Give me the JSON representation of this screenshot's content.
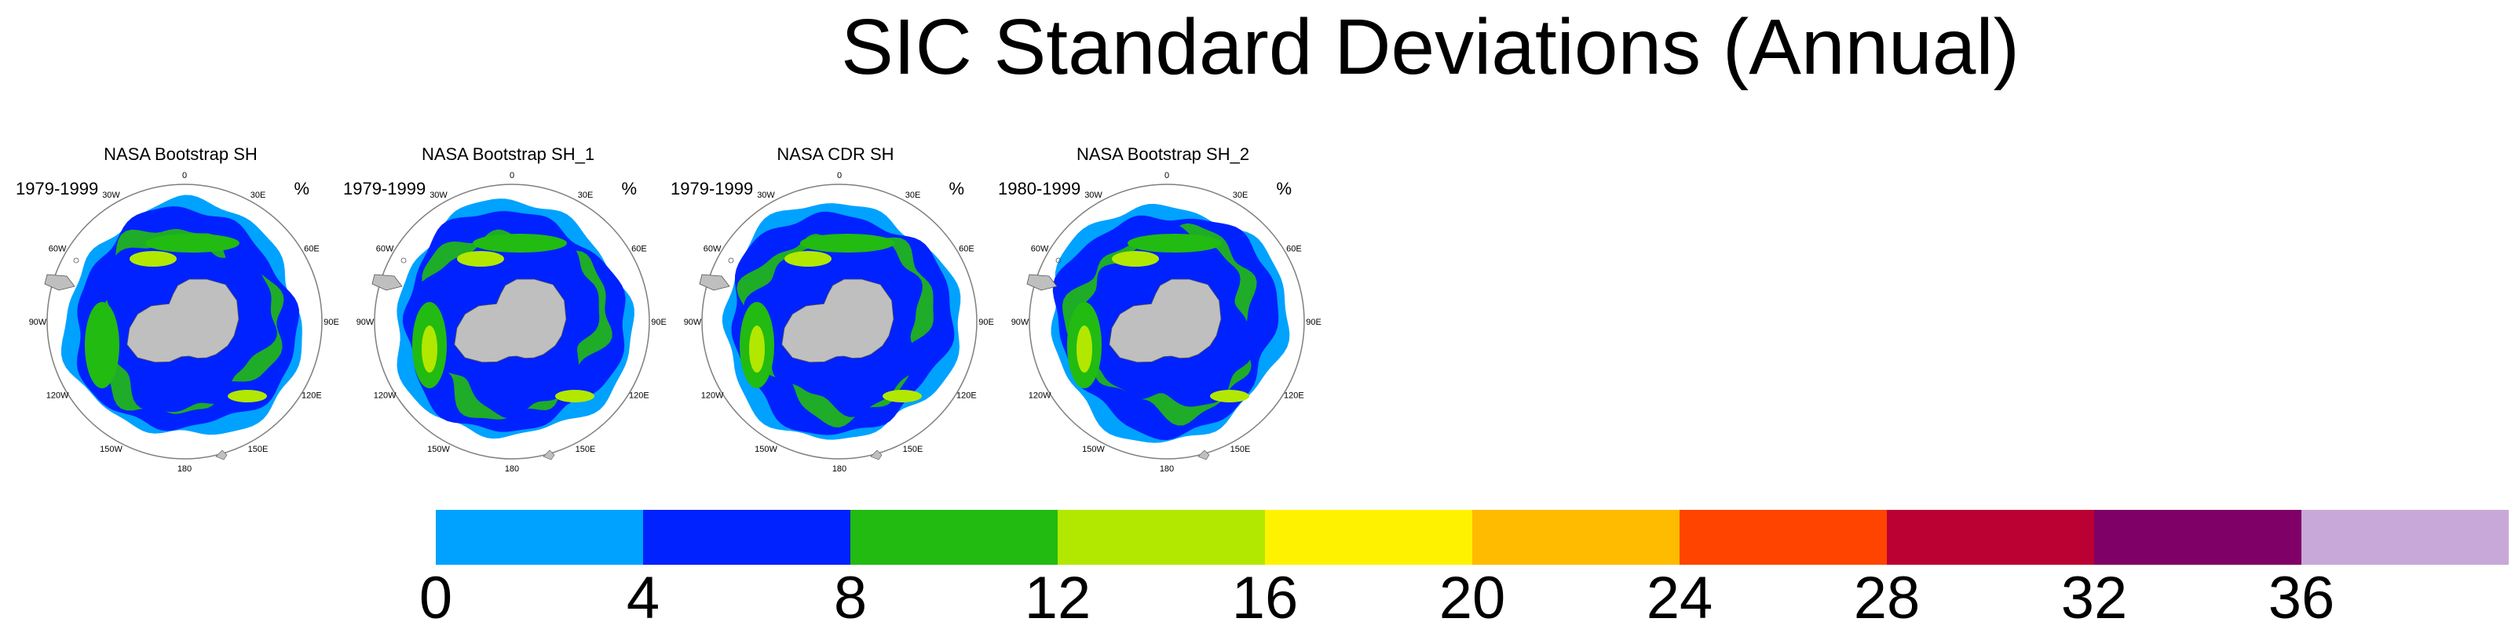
{
  "title": "SIC Standard Deviations (Annual)",
  "panels": [
    {
      "title": "NASA Bootstrap SH",
      "period": "1979-1999",
      "unit": "%"
    },
    {
      "title": "NASA Bootstrap SH_1",
      "period": "1979-1999",
      "unit": "%"
    },
    {
      "title": "NASA CDR SH",
      "period": "1979-1999",
      "unit": "%"
    },
    {
      "title": "NASA Bootstrap SH_2",
      "period": "1980-1999",
      "unit": "%"
    }
  ],
  "longitude_labels": [
    "0",
    "30E",
    "60E",
    "90E",
    "120E",
    "150E",
    "180",
    "150W",
    "120W",
    "90W",
    "60W",
    "30W"
  ],
  "colors": {
    "land": "#bfbfbf",
    "circle": "#7f7f7f",
    "levels": [
      "#00a2ff",
      "#0022ff",
      "#22bb11",
      "#b2e800",
      "#fff200",
      "#ffbb00",
      "#ff4400",
      "#bb0033",
      "#7f0066",
      "#c8a8d8"
    ]
  },
  "chart_data": {
    "type": "heatmap",
    "title": "SIC Standard Deviations (Annual)",
    "projection": "south-polar-stereographic",
    "unit": "%",
    "colorbar": {
      "levels": [
        0,
        4,
        8,
        12,
        16,
        20,
        24,
        28,
        32,
        36
      ],
      "tick_labels": [
        "0",
        "4",
        "8",
        "12",
        "16",
        "20",
        "24",
        "28",
        "32",
        "36"
      ],
      "bins": [
        "0-4",
        "4-8",
        "8-12",
        "12-16",
        "16-20",
        "20-24",
        "24-28",
        "28-32",
        "32-36",
        ">36"
      ]
    },
    "panels": [
      {
        "name": "NASA Bootstrap SH",
        "period": "1979-1999",
        "dominant_range": "0-12"
      },
      {
        "name": "NASA Bootstrap SH_1",
        "period": "1979-1999",
        "dominant_range": "0-16"
      },
      {
        "name": "NASA CDR SH",
        "period": "1979-1999",
        "dominant_range": "0-16"
      },
      {
        "name": "NASA Bootstrap SH_2",
        "period": "1980-1999",
        "dominant_range": "0-16"
      }
    ]
  }
}
